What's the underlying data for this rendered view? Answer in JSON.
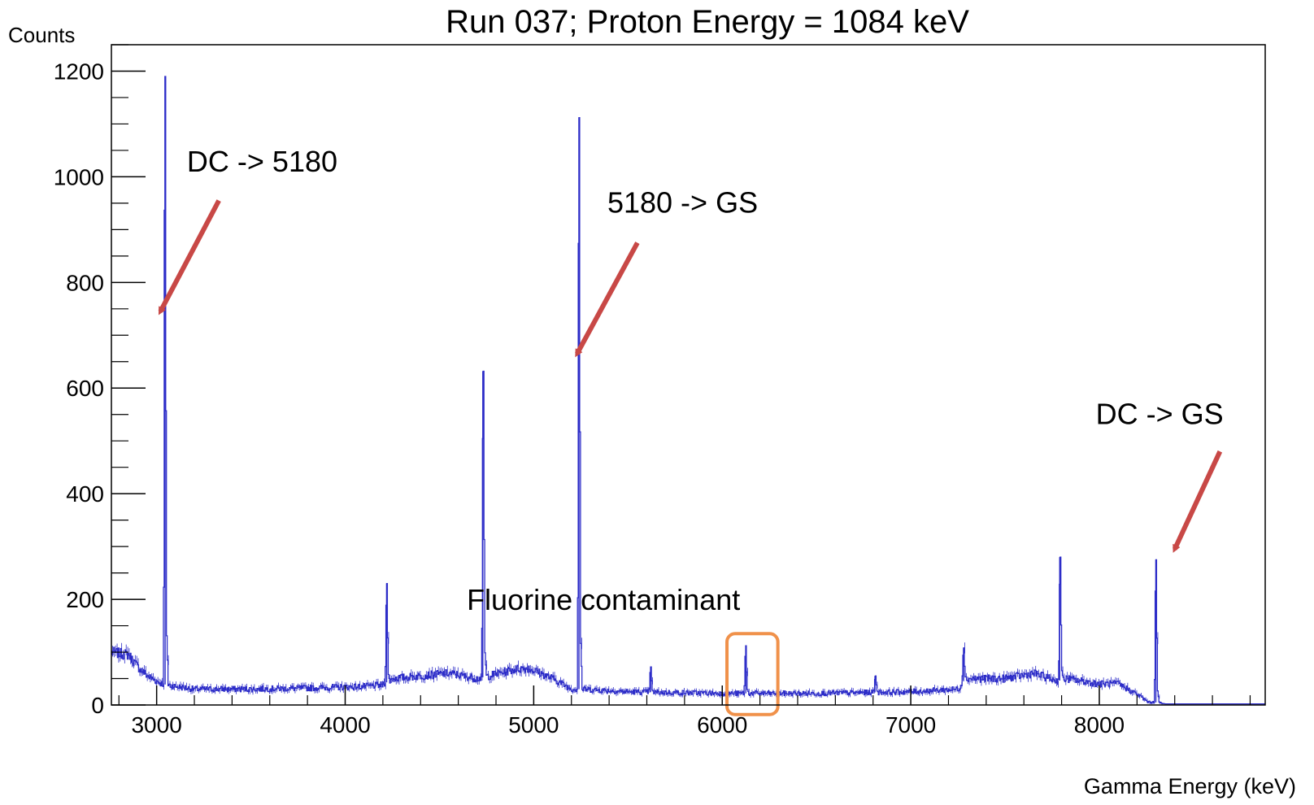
{
  "chart_data": {
    "type": "line",
    "title": "Run 037; Proton Energy = 1084 keV",
    "xlabel": "Gamma Energy (keV)",
    "ylabel": "Counts",
    "xlim": [
      2760,
      8880
    ],
    "ylim": [
      0,
      1250
    ],
    "x_ticks": [
      3000,
      4000,
      5000,
      6000,
      7000,
      8000
    ],
    "y_ticks": [
      0,
      200,
      400,
      600,
      800,
      1000,
      1200
    ],
    "grid": false,
    "legend": "none",
    "series": [
      {
        "color": "#2d2dc8",
        "baseline": [
          [
            2760,
            100
          ],
          [
            2850,
            95
          ],
          [
            2900,
            72
          ],
          [
            2950,
            55
          ],
          [
            3000,
            45
          ],
          [
            3030,
            40
          ],
          [
            3100,
            35
          ],
          [
            3200,
            30
          ],
          [
            3500,
            30
          ],
          [
            3800,
            32
          ],
          [
            4100,
            35
          ],
          [
            4200,
            38
          ],
          [
            4250,
            50
          ],
          [
            4400,
            55
          ],
          [
            4550,
            60
          ],
          [
            4700,
            50
          ],
          [
            4760,
            55
          ],
          [
            4900,
            68
          ],
          [
            4970,
            70
          ],
          [
            5100,
            50
          ],
          [
            5200,
            30
          ],
          [
            5260,
            30
          ],
          [
            5500,
            25
          ],
          [
            6000,
            22
          ],
          [
            6500,
            22
          ],
          [
            7000,
            25
          ],
          [
            7250,
            30
          ],
          [
            7290,
            50
          ],
          [
            7500,
            50
          ],
          [
            7650,
            60
          ],
          [
            7780,
            45
          ],
          [
            7820,
            50
          ],
          [
            8000,
            40
          ],
          [
            8100,
            40
          ],
          [
            8200,
            20
          ],
          [
            8260,
            5
          ],
          [
            8300,
            5
          ],
          [
            8350,
            2
          ],
          [
            8880,
            2
          ]
        ],
        "peaks": [
          {
            "x": 3045,
            "height": 1190
          },
          {
            "x": 4220,
            "height": 230
          },
          {
            "x": 4730,
            "height": 632
          },
          {
            "x": 5240,
            "height": 1112
          },
          {
            "x": 5620,
            "height": 72
          },
          {
            "x": 6125,
            "height": 112
          },
          {
            "x": 6810,
            "height": 55
          },
          {
            "x": 7280,
            "height": 108
          },
          {
            "x": 7790,
            "height": 280
          },
          {
            "x": 8300,
            "height": 275
          }
        ]
      }
    ],
    "annotations": [
      {
        "text": "DC -> 5180",
        "x": 3560,
        "y": 1010,
        "arrow_from": [
          3330,
          955
        ],
        "arrow_to": [
          3020,
          745
        ],
        "color": "#c84846"
      },
      {
        "text": "5180 -> GS",
        "x": 5790,
        "y": 932,
        "arrow_from": [
          5550,
          875
        ],
        "arrow_to": [
          5230,
          665
        ],
        "color": "#c84846"
      },
      {
        "text": "DC -> GS",
        "x": 8320,
        "y": 532,
        "arrow_from": [
          8640,
          480
        ],
        "arrow_to": [
          8400,
          295
        ],
        "color": "#c84846"
      },
      {
        "text": "Fluorine contaminant",
        "x": 5370,
        "y": 180
      }
    ],
    "highlight_box": {
      "x0": 6025,
      "x1": 6295,
      "y0": -18,
      "y1": 135,
      "color": "#f0914a"
    }
  }
}
